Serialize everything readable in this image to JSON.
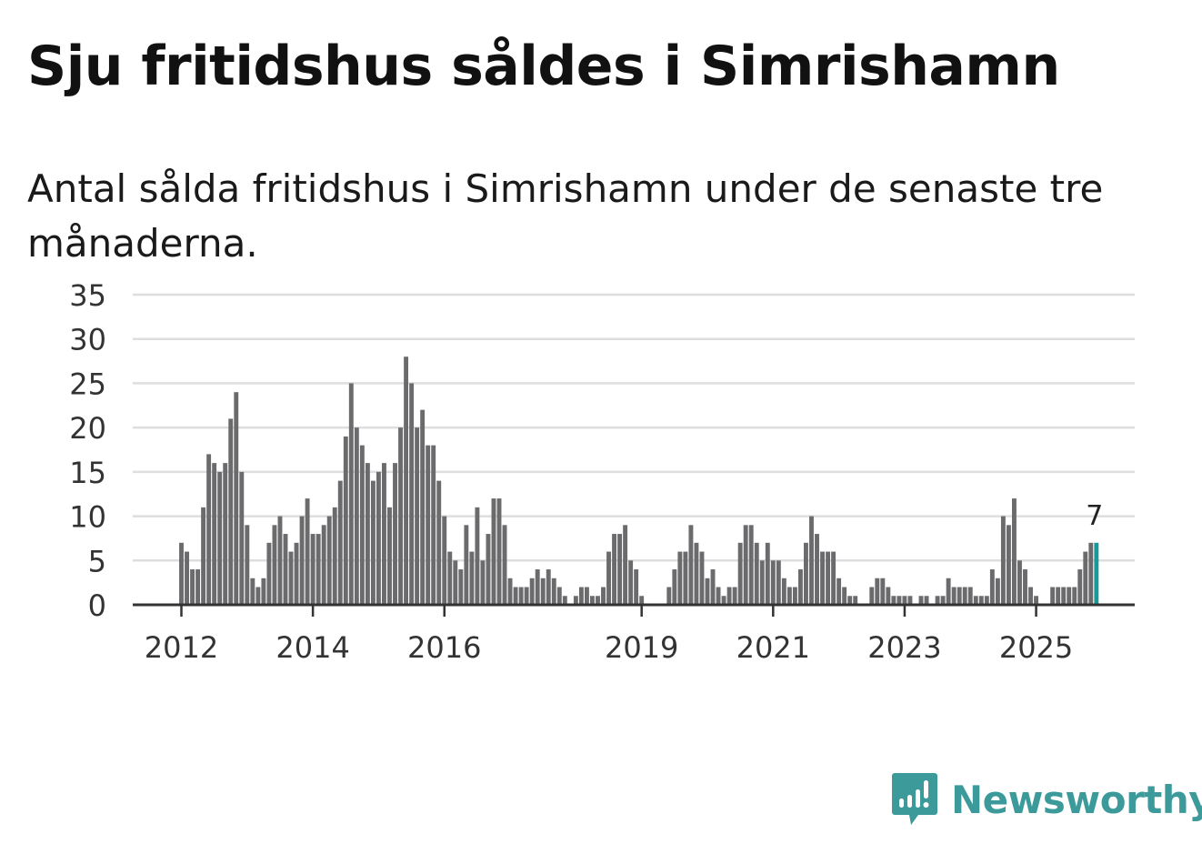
{
  "title": "Sju fritidshus såldes i Simrishamn",
  "subtitle": "Antal sålda fritidshus i Simrishamn under de senaste tre månaderna.",
  "brand": {
    "name": "Newsworthy",
    "color": "#3d9a9a"
  },
  "colors": {
    "bar": "#6b6b6e",
    "highlight": "#1a9a96",
    "grid": "#dedede",
    "axis": "#333333"
  },
  "chart_data": {
    "type": "bar",
    "title": "Sju fritidshus såldes i Simrishamn",
    "ylabel": "",
    "xlabel": "",
    "ylim": [
      0,
      35
    ],
    "y_ticks": [
      0,
      5,
      10,
      15,
      20,
      25,
      30,
      35
    ],
    "x_ticks": [
      {
        "label": "2012",
        "index": 0
      },
      {
        "label": "2014",
        "index": 24
      },
      {
        "label": "2016",
        "index": 48
      },
      {
        "label": "2019",
        "index": 84
      },
      {
        "label": "2021",
        "index": 108
      },
      {
        "label": "2023",
        "index": 132
      },
      {
        "label": "2025",
        "index": 156
      }
    ],
    "grid": true,
    "highlight_label": "7",
    "values": [
      7,
      6,
      4,
      4,
      11,
      17,
      16,
      15,
      16,
      21,
      24,
      15,
      9,
      3,
      2,
      3,
      7,
      9,
      10,
      8,
      6,
      7,
      10,
      12,
      8,
      8,
      9,
      10,
      11,
      14,
      19,
      25,
      20,
      18,
      16,
      14,
      15,
      16,
      11,
      16,
      20,
      28,
      25,
      20,
      22,
      18,
      18,
      14,
      10,
      6,
      5,
      4,
      9,
      6,
      11,
      5,
      8,
      12,
      12,
      9,
      3,
      2,
      2,
      2,
      3,
      4,
      3,
      4,
      3,
      2,
      1,
      0,
      1,
      2,
      2,
      1,
      1,
      2,
      6,
      8,
      8,
      9,
      5,
      4,
      1,
      0,
      0,
      0,
      0,
      2,
      4,
      6,
      6,
      9,
      7,
      6,
      3,
      4,
      2,
      1,
      2,
      2,
      7,
      9,
      9,
      7,
      5,
      7,
      5,
      5,
      3,
      2,
      2,
      4,
      7,
      10,
      8,
      6,
      6,
      6,
      3,
      2,
      1,
      1,
      0,
      0,
      2,
      3,
      3,
      2,
      1,
      1,
      1,
      1,
      0,
      1,
      1,
      0,
      1,
      1,
      3,
      2,
      2,
      2,
      2,
      1,
      1,
      1,
      4,
      3,
      10,
      9,
      12,
      5,
      4,
      2,
      1,
      0,
      0,
      2,
      2,
      2,
      2,
      2,
      4,
      6,
      7,
      7
    ]
  }
}
